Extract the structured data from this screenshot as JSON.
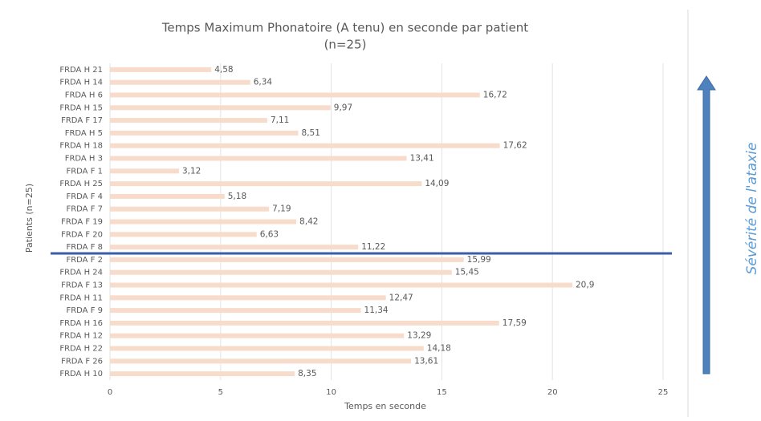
{
  "chart_data": {
    "type": "bar",
    "orientation": "horizontal",
    "title": "Temps Maximum Phonatoire (A tenu) en seconde par patient",
    "subtitle": "(n=25)",
    "x_label": "Temps en seconde",
    "y_label": "Patients (n=25)",
    "annotation": "Sévérité de l'ataxie",
    "color": "#f8dccb",
    "categories": [
      "FRDA H 21",
      "FRDA H 14",
      "FRDA H 6",
      "FRDA H 15",
      "FRDA F 17",
      "FRDA H 5",
      "FRDA H 18",
      "FRDA H 3",
      "FRDA F 1",
      "FRDA H 25",
      "FRDA F 4",
      "FRDA F 7",
      "FRDA F 19",
      "FRDA F 20",
      "FRDA F 8",
      "FRDA F 2",
      "FRDA H 24",
      "FRDA F 13",
      "FRDA H 11",
      "FRDA F 9",
      "FRDA H 16",
      "FRDA H 12",
      "FRDA H 22",
      "FRDA F 26",
      "FRDA H 10"
    ],
    "values": [
      4.58,
      6.34,
      16.72,
      9.97,
      7.11,
      8.51,
      17.62,
      13.41,
      3.12,
      14.09,
      5.18,
      7.19,
      8.42,
      6.63,
      11.22,
      15.99,
      15.45,
      20.9,
      12.47,
      11.34,
      17.59,
      13.29,
      14.18,
      13.61,
      8.35
    ],
    "value_labels": [
      "4,58",
      "6,34",
      "16,72",
      "9,97",
      "7,11",
      "8,51",
      "17,62",
      "13,41",
      "3,12",
      "14,09",
      "5,18",
      "7,19",
      "8,42",
      "6,63",
      "11,22",
      "15,99",
      "15,45",
      "20,9",
      "12,47",
      "11,34",
      "17,59",
      "13,29",
      "14,18",
      "13,61",
      "8,35"
    ],
    "xlim": [
      0,
      25
    ],
    "xticks": [
      0,
      5,
      10,
      15,
      20,
      25
    ],
    "grid": true
  }
}
